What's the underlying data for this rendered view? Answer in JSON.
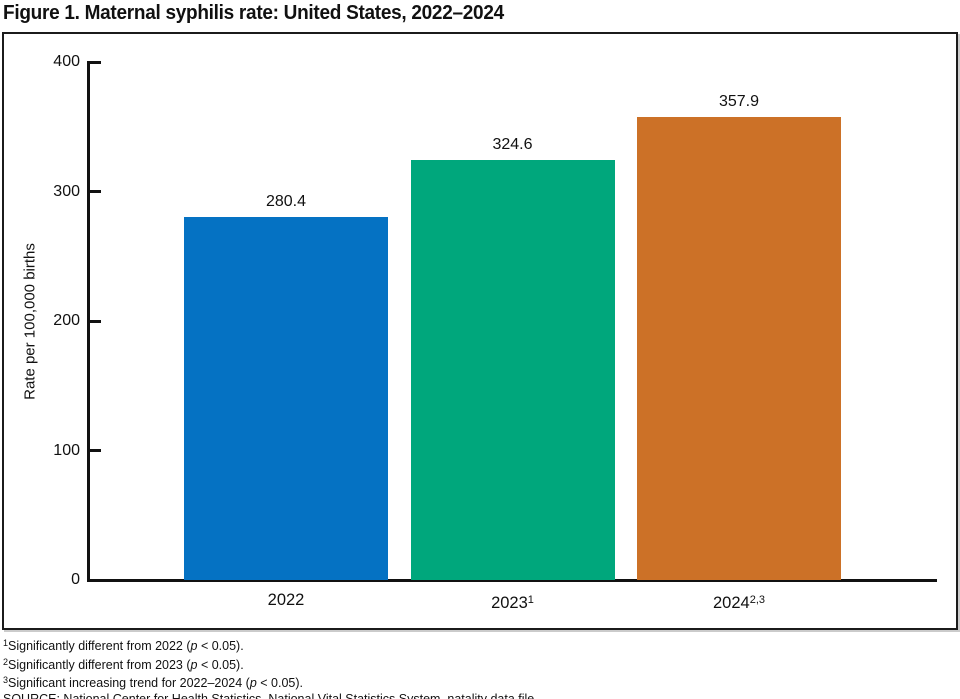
{
  "figure": {
    "title": "Figure 1. Maternal syphilis rate: United States, 2022–2024"
  },
  "chart_data": {
    "type": "bar",
    "title": "Figure 1. Maternal syphilis rate: United States, 2022–2024",
    "categories": [
      {
        "label": "2022",
        "sup": ""
      },
      {
        "label": "2023",
        "sup": "1"
      },
      {
        "label": "2024",
        "sup": "2,3"
      }
    ],
    "values": [
      280.4,
      324.6,
      357.9
    ],
    "value_labels": [
      "280.4",
      "324.6",
      "357.9"
    ],
    "bar_colors": [
      "#0572c3",
      "#00a77c",
      "#cc7127"
    ],
    "xlabel": "",
    "ylabel": "Rate per 100,000 births",
    "ylim": [
      0,
      400
    ],
    "yticks": [
      0,
      100,
      200,
      300,
      400
    ],
    "grid": false,
    "legend": "none"
  },
  "footnotes": [
    {
      "sup": "1",
      "before": "Significantly different from 2022 (",
      "italic": "p",
      "after": " < 0.05)."
    },
    {
      "sup": "2",
      "before": "Significantly different from 2023 (",
      "italic": "p",
      "after": " < 0.05)."
    },
    {
      "sup": "3",
      "before": "Significant increasing trend for 2022–2024 (",
      "italic": "p",
      "after": " < 0.05)."
    },
    {
      "sup": "",
      "before": "SOURCE: National Center for Health Statistics, National Vital Statistics System. natality data file.",
      "italic": "",
      "after": ""
    }
  ]
}
